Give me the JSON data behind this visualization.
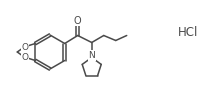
{
  "bg_color": "#ffffff",
  "line_color": "#4a4a4a",
  "text_color": "#4a4a4a",
  "hcl_text": "HCl",
  "o_carbonyl": "O",
  "n_text": "N",
  "o_top": "O",
  "o_bottom": "O",
  "fig_width": 2.2,
  "fig_height": 0.97,
  "dpi": 100,
  "lw": 1.1
}
